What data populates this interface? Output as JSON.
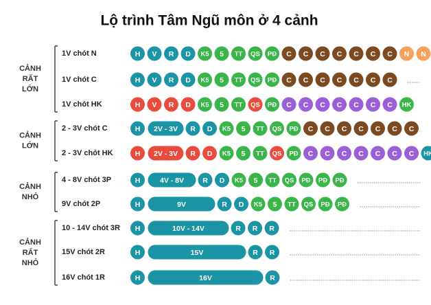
{
  "title": "Lộ trình Tâm Ngũ môn ở 4 cảnh",
  "groups": [
    {
      "label": [
        "CẢNH",
        "RẤT",
        "LỚN"
      ],
      "rows": [
        {
          "label": "1V chót N",
          "tokens": [
            {
              "text": "H",
              "color": "#1b95a6"
            },
            {
              "text": "V",
              "color": "#1b95a6"
            },
            {
              "text": "R",
              "color": "#1b95a6"
            },
            {
              "text": "D",
              "color": "#1b95a6"
            },
            {
              "text": "K5",
              "color": "#39b54a"
            },
            {
              "text": "5",
              "color": "#39b54a"
            },
            {
              "text": "TT",
              "color": "#39b54a"
            },
            {
              "text": "QS",
              "color": "#39b54a"
            },
            {
              "text": "PĐ",
              "color": "#39b54a"
            },
            {
              "text": "C",
              "color": "#7b4a21"
            },
            {
              "text": "C",
              "color": "#7b4a21"
            },
            {
              "text": "C",
              "color": "#7b4a21"
            },
            {
              "text": "C",
              "color": "#7b4a21"
            },
            {
              "text": "C",
              "color": "#7b4a21"
            },
            {
              "text": "C",
              "color": "#7b4a21"
            },
            {
              "text": "C",
              "color": "#7b4a21"
            },
            {
              "text": "N",
              "color": "#f7a15a"
            },
            {
              "text": "N",
              "color": "#f7a15a"
            }
          ]
        },
        {
          "label": "1V chót C",
          "tokens": [
            {
              "text": "H",
              "color": "#1b95a6"
            },
            {
              "text": "V",
              "color": "#1b95a6"
            },
            {
              "text": "R",
              "color": "#1b95a6"
            },
            {
              "text": "D",
              "color": "#1b95a6"
            },
            {
              "text": "K5",
              "color": "#39b54a"
            },
            {
              "text": "5",
              "color": "#39b54a"
            },
            {
              "text": "TT",
              "color": "#39b54a"
            },
            {
              "text": "QS",
              "color": "#39b54a"
            },
            {
              "text": "PĐ",
              "color": "#39b54a"
            },
            {
              "text": "C",
              "color": "#7b4a21"
            },
            {
              "text": "C",
              "color": "#7b4a21"
            },
            {
              "text": "C",
              "color": "#7b4a21"
            },
            {
              "text": "C",
              "color": "#7b4a21"
            },
            {
              "text": "C",
              "color": "#7b4a21"
            },
            {
              "text": "C",
              "color": "#7b4a21"
            },
            {
              "text": "C",
              "color": "#7b4a21"
            }
          ]
        },
        {
          "label": "1V chót HK",
          "tokens": [
            {
              "text": "H",
              "color": "#e94b3c"
            },
            {
              "text": "V",
              "color": "#e94b3c"
            },
            {
              "text": "R",
              "color": "#e94b3c"
            },
            {
              "text": "D",
              "color": "#e94b3c"
            },
            {
              "text": "K5",
              "color": "#39b54a"
            },
            {
              "text": "5",
              "color": "#39b54a"
            },
            {
              "text": "TT",
              "color": "#39b54a"
            },
            {
              "text": "QS",
              "color": "#e94b3c"
            },
            {
              "text": "PĐ",
              "color": "#39b54a"
            },
            {
              "text": "C",
              "color": "#9a5fd6"
            },
            {
              "text": "C",
              "color": "#9a5fd6"
            },
            {
              "text": "C",
              "color": "#9a5fd6"
            },
            {
              "text": "C",
              "color": "#9a5fd6"
            },
            {
              "text": "C",
              "color": "#9a5fd6"
            },
            {
              "text": "C",
              "color": "#9a5fd6"
            },
            {
              "text": "C",
              "color": "#9a5fd6"
            },
            {
              "text": "HK",
              "color": "#39b54a"
            }
          ]
        }
      ]
    },
    {
      "label": [
        "CẢNH",
        "LỚN"
      ],
      "rows": [
        {
          "label": "2 - 3V chót C",
          "tokens": [
            {
              "text": "H",
              "color": "#1b95a6"
            },
            {
              "text": "2V - 3V",
              "color": "#1b95a6"
            },
            {
              "text": "R",
              "color": "#1b95a6"
            },
            {
              "text": "D",
              "color": "#1b95a6"
            },
            {
              "text": "K5",
              "color": "#39b54a"
            },
            {
              "text": "5",
              "color": "#39b54a"
            },
            {
              "text": "TT",
              "color": "#39b54a"
            },
            {
              "text": "QS",
              "color": "#39b54a"
            },
            {
              "text": "PĐ",
              "color": "#39b54a"
            },
            {
              "text": "C",
              "color": "#7b4a21"
            },
            {
              "text": "C",
              "color": "#7b4a21"
            },
            {
              "text": "C",
              "color": "#7b4a21"
            },
            {
              "text": "C",
              "color": "#7b4a21"
            },
            {
              "text": "C",
              "color": "#7b4a21"
            },
            {
              "text": "C",
              "color": "#7b4a21"
            },
            {
              "text": "C",
              "color": "#7b4a21"
            }
          ]
        },
        {
          "label": "2 - 3V chót HK",
          "tokens": [
            {
              "text": "H",
              "color": "#e94b3c"
            },
            {
              "text": "2V - 3V",
              "color": "#e94b3c"
            },
            {
              "text": "R",
              "color": "#e94b3c"
            },
            {
              "text": "D",
              "color": "#e94b3c"
            },
            {
              "text": "K5",
              "color": "#39b54a"
            },
            {
              "text": "5",
              "color": "#39b54a"
            },
            {
              "text": "TT",
              "color": "#39b54a"
            },
            {
              "text": "QS",
              "color": "#e94b3c"
            },
            {
              "text": "PĐ",
              "color": "#39b54a"
            },
            {
              "text": "C",
              "color": "#9a5fd6"
            },
            {
              "text": "C",
              "color": "#9a5fd6"
            },
            {
              "text": "C",
              "color": "#9a5fd6"
            },
            {
              "text": "C",
              "color": "#9a5fd6"
            },
            {
              "text": "C",
              "color": "#9a5fd6"
            },
            {
              "text": "C",
              "color": "#9a5fd6"
            },
            {
              "text": "C",
              "color": "#9a5fd6"
            },
            {
              "text": "HK",
              "color": "#1b95a6"
            }
          ]
        }
      ]
    },
    {
      "label": [
        "CẢNH",
        "NHỎ"
      ],
      "rows": [
        {
          "label": "4 - 8V chót 3P",
          "tokens": [
            {
              "text": "H",
              "color": "#1b95a6"
            },
            {
              "text": "4V - 8V",
              "color": "#1b95a6"
            },
            {
              "text": "R",
              "color": "#1b95a6"
            },
            {
              "text": "D",
              "color": "#1b95a6"
            },
            {
              "text": "K5",
              "color": "#39b54a"
            },
            {
              "text": "5",
              "color": "#39b54a"
            },
            {
              "text": "TT",
              "color": "#39b54a"
            },
            {
              "text": "QS",
              "color": "#39b54a"
            },
            {
              "text": "PĐ",
              "color": "#39b54a"
            },
            {
              "text": "PĐ",
              "color": "#39b54a"
            },
            {
              "text": "PĐ",
              "color": "#39b54a"
            }
          ]
        },
        {
          "label": "9V chót 2P",
          "tokens": [
            {
              "text": "H",
              "color": "#1b95a6"
            },
            {
              "text": "9V",
              "color": "#1b95a6"
            },
            {
              "text": "R",
              "color": "#1b95a6"
            },
            {
              "text": "D",
              "color": "#1b95a6"
            },
            {
              "text": "K5",
              "color": "#39b54a"
            },
            {
              "text": "5",
              "color": "#39b54a"
            },
            {
              "text": "TT",
              "color": "#39b54a"
            },
            {
              "text": "QS",
              "color": "#39b54a"
            },
            {
              "text": "PĐ",
              "color": "#39b54a"
            },
            {
              "text": "PĐ",
              "color": "#39b54a"
            }
          ]
        }
      ]
    },
    {
      "label": [
        "CẢNH",
        "RẤT",
        "NHỎ"
      ],
      "rows": [
        {
          "label": "10 - 14V chót 3R",
          "tokens": [
            {
              "text": "H",
              "color": "#1b95a6"
            },
            {
              "text": "10V - 14V",
              "color": "#1b95a6"
            },
            {
              "text": "R",
              "color": "#1b95a6"
            },
            {
              "text": "R",
              "color": "#1b95a6"
            },
            {
              "text": "R",
              "color": "#1b95a6"
            }
          ]
        },
        {
          "label": "15V chót 2R",
          "tokens": [
            {
              "text": "H",
              "color": "#1b95a6"
            },
            {
              "text": "15V",
              "color": "#1b95a6"
            },
            {
              "text": "R",
              "color": "#1b95a6"
            },
            {
              "text": "R",
              "color": "#1b95a6"
            }
          ]
        },
        {
          "label": "16V chót 1R",
          "tokens": [
            {
              "text": "H",
              "color": "#1b95a6"
            },
            {
              "text": "16V",
              "color": "#1b95a6"
            },
            {
              "text": "R",
              "color": "#1b95a6"
            }
          ]
        }
      ]
    }
  ]
}
